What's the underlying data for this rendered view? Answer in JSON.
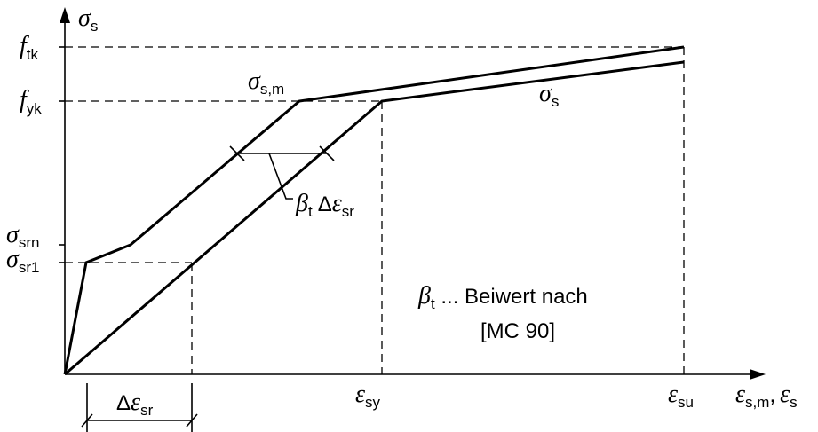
{
  "axes": {
    "y_symbol": "σ",
    "y_sub": "s",
    "x_label_1_symbol": "ε",
    "x_label_1_sub": "s,m",
    "x_label_sep": ",",
    "x_label_2_symbol": "ε",
    "x_label_2_sub": "s"
  },
  "y_ticks": {
    "ftk": {
      "sym": "f",
      "sub": "tk"
    },
    "fyk": {
      "sym": "f",
      "sub": "yk"
    },
    "srn": {
      "sym": "σ",
      "sub": "srn"
    },
    "sr1": {
      "sym": "σ",
      "sub": "sr1"
    }
  },
  "x_ticks": {
    "sy": {
      "sym": "ε",
      "sub": "sy"
    },
    "su": {
      "sym": "ε",
      "sub": "su"
    }
  },
  "curve_labels": {
    "sigma_sm": {
      "sym": "σ",
      "sub": "s,m"
    },
    "sigma_s": {
      "sym": "σ",
      "sub": "s"
    }
  },
  "beta_label": {
    "sym": "β",
    "sub": "t",
    "delta": "Δ",
    "eps": "ε",
    "eps_sub": "sr"
  },
  "delta_eps_sr": {
    "delta": "Δ",
    "eps": "ε",
    "sub": "sr"
  },
  "note": {
    "beta_sym": "β",
    "beta_sub": "t",
    "line1_rest": " ... Beiwert nach",
    "line2": "[MC 90]"
  }
}
